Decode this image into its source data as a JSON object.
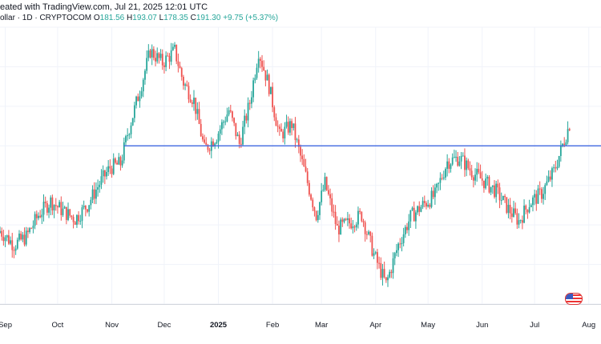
{
  "header": {
    "line1": "eated with TradingView.com, Jul 21, 2025 12:01 UTC",
    "symbol": "ollar · 1D · CRYPTOCOM",
    "ohlc": {
      "o_label": "O",
      "o": "181.56",
      "h_label": "H",
      "h": "193.07",
      "l_label": "L",
      "l": "178.35",
      "c_label": "C",
      "c": "191.30",
      "change": "+9.75 (+5.37%)"
    }
  },
  "colors": {
    "up": "#26a69a",
    "down": "#ef5350",
    "level": "#4169e1",
    "grid": "#f0f3fa"
  },
  "chart_data": {
    "type": "candlestick",
    "x_tick_labels": [
      "Sep",
      "Oct",
      "Nov",
      "Dec",
      "2025",
      "Feb",
      "Mar",
      "Apr",
      "May",
      "Jun",
      "Jul",
      "Aug"
    ],
    "horizontal_level": 180,
    "y_range": [
      100,
      240
    ],
    "close_path": [
      [
        "2024-08-29",
        137
      ],
      [
        "2024-09-06",
        130
      ],
      [
        "2024-09-13",
        134
      ],
      [
        "2024-09-20",
        145
      ],
      [
        "2024-09-27",
        152
      ],
      [
        "2024-10-04",
        147
      ],
      [
        "2024-10-11",
        143
      ],
      [
        "2024-10-18",
        150
      ],
      [
        "2024-10-25",
        161
      ],
      [
        "2024-10-31",
        169
      ],
      [
        "2024-11-06",
        171
      ],
      [
        "2024-11-10",
        186
      ],
      [
        "2024-11-17",
        208
      ],
      [
        "2024-11-23",
        228
      ],
      [
        "2024-11-30",
        222
      ],
      [
        "2024-12-07",
        228
      ],
      [
        "2024-12-12",
        212
      ],
      [
        "2024-12-18",
        203
      ],
      [
        "2024-12-24",
        178
      ],
      [
        "2024-12-31",
        185
      ],
      [
        "2025-01-07",
        198
      ],
      [
        "2025-01-13",
        181
      ],
      [
        "2025-01-19",
        202
      ],
      [
        "2025-01-24",
        228
      ],
      [
        "2025-01-30",
        210
      ],
      [
        "2025-02-05",
        185
      ],
      [
        "2025-02-12",
        191
      ],
      [
        "2025-02-19",
        168
      ],
      [
        "2025-02-26",
        145
      ],
      [
        "2025-03-03",
        161
      ],
      [
        "2025-03-10",
        138
      ],
      [
        "2025-03-17",
        141
      ],
      [
        "2025-03-24",
        145
      ],
      [
        "2025-03-31",
        125
      ],
      [
        "2025-04-07",
        110
      ],
      [
        "2025-04-14",
        130
      ],
      [
        "2025-04-21",
        144
      ],
      [
        "2025-04-28",
        150
      ],
      [
        "2025-05-05",
        155
      ],
      [
        "2025-05-12",
        172
      ],
      [
        "2025-05-19",
        174
      ],
      [
        "2025-05-26",
        167
      ],
      [
        "2025-06-02",
        162
      ],
      [
        "2025-06-09",
        157
      ],
      [
        "2025-06-16",
        148
      ],
      [
        "2025-06-22",
        142
      ],
      [
        "2025-06-28",
        151
      ],
      [
        "2025-07-05",
        156
      ],
      [
        "2025-07-12",
        167
      ],
      [
        "2025-07-21",
        191
      ]
    ]
  }
}
